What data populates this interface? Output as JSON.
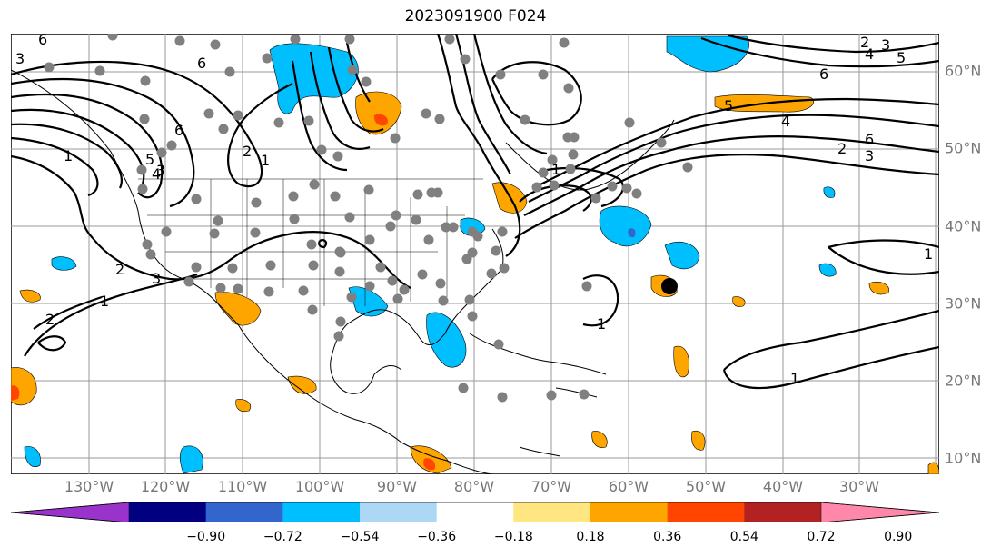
{
  "title": "2023091900 F024",
  "map": {
    "lon_labels": [
      "130°W",
      "120°W",
      "110°W",
      "100°W",
      "90°W",
      "80°W",
      "70°W",
      "60°W",
      "50°W",
      "40°W",
      "30°W"
    ],
    "lat_labels": [
      "60°N",
      "50°N",
      "40°N",
      "30°N",
      "20°N",
      "10°N"
    ],
    "land_color": "#ffffff",
    "ocean_color": "#ffffff",
    "grid_color": "#999999",
    "contour_labels": [
      "6",
      "6",
      "6",
      "5",
      "4",
      "3",
      "2",
      "1",
      "3",
      "2",
      "1",
      "6",
      "5",
      "4",
      "3",
      "2",
      "6",
      "5",
      "4",
      "3",
      "2",
      "1",
      "2",
      "3",
      "1",
      "1",
      "1",
      "1"
    ],
    "station_marker_color": "#808080",
    "storm_marker_color": "#000000"
  },
  "colorbar": {
    "ticks": [
      "−0.90",
      "−0.72",
      "−0.54",
      "−0.36",
      "−0.18",
      "0.18",
      "0.36",
      "0.54",
      "0.72",
      "0.90"
    ],
    "colors": [
      "#9933cc",
      "#000080",
      "#3366cc",
      "#00bfff",
      "#add8f5",
      "#ffffff",
      "#ffe680",
      "#ffa500",
      "#ff4500",
      "#b22222",
      "#ff88aa"
    ]
  }
}
